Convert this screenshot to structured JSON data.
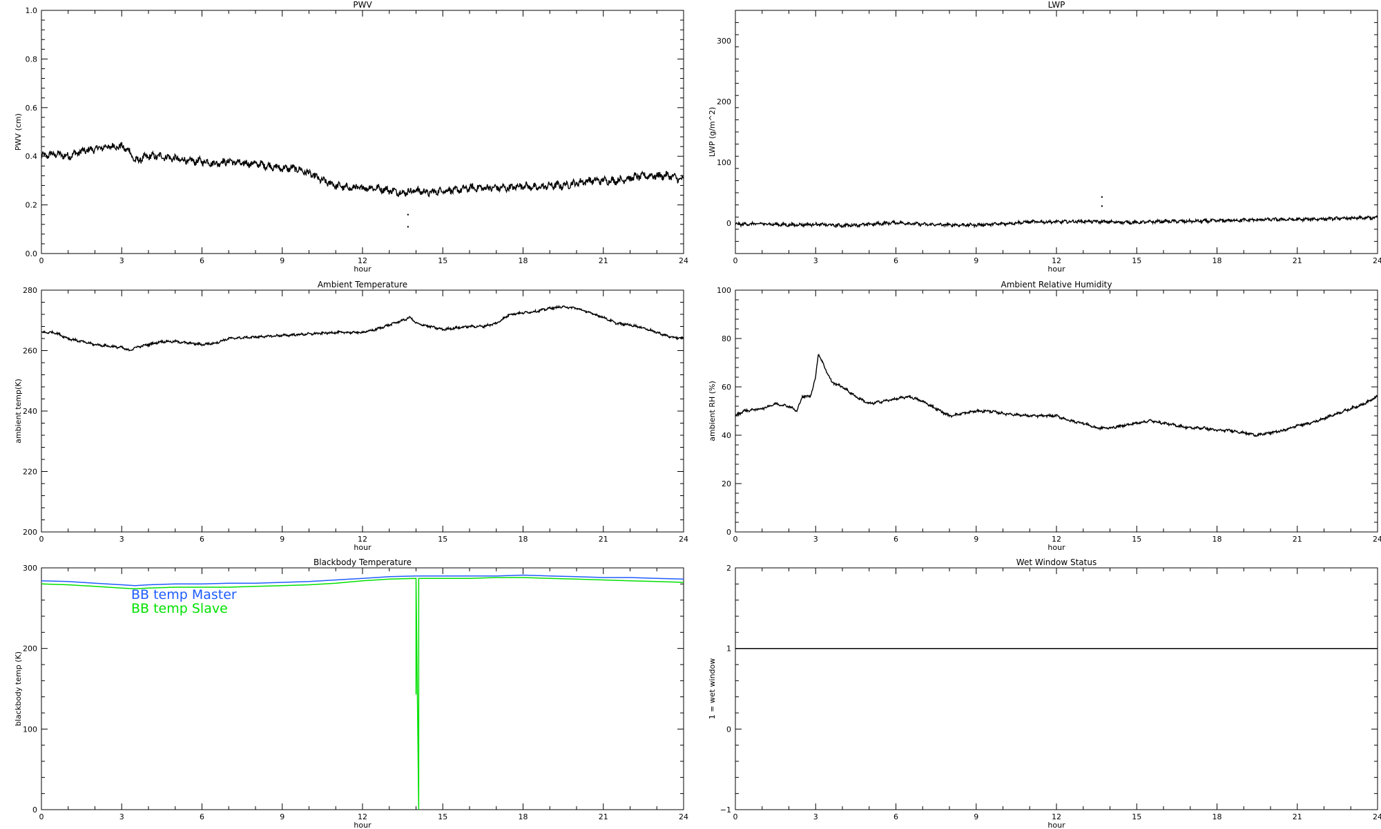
{
  "chart_data": [
    {
      "id": "pwv",
      "type": "scatter",
      "title": "PWV",
      "xlabel": "hour",
      "ylabel": "PWV (cm)",
      "xlim": [
        0,
        24
      ],
      "ylim": [
        0.0,
        1.0
      ],
      "xticks": [
        0,
        3,
        6,
        9,
        12,
        15,
        18,
        21,
        24
      ],
      "yticks": [
        0.0,
        0.2,
        0.4,
        0.6,
        0.8,
        1.0
      ],
      "ytick_labels": [
        "0.0",
        "0.2",
        "0.4",
        "0.6",
        "0.8",
        "1.0"
      ],
      "grid": false,
      "series": [
        {
          "color": "#000000",
          "noise": 0.012,
          "x": [
            0,
            0.5,
            1,
            1.5,
            2,
            2.5,
            3,
            3.3,
            3.5,
            4,
            4.5,
            5,
            5.5,
            6,
            6.5,
            7,
            7.5,
            8,
            8.5,
            9,
            9.5,
            10,
            10.5,
            11,
            11.5,
            12,
            12.5,
            13,
            13.5,
            14,
            14.5,
            15,
            15.5,
            16,
            16.5,
            17,
            17.5,
            18,
            18.5,
            19,
            19.5,
            20,
            20.5,
            21,
            21.5,
            22,
            22.5,
            23,
            23.5,
            24
          ],
          "y": [
            0.4,
            0.41,
            0.4,
            0.42,
            0.43,
            0.44,
            0.44,
            0.42,
            0.38,
            0.4,
            0.4,
            0.39,
            0.38,
            0.38,
            0.37,
            0.38,
            0.37,
            0.37,
            0.36,
            0.35,
            0.35,
            0.33,
            0.3,
            0.28,
            0.27,
            0.27,
            0.27,
            0.26,
            0.25,
            0.26,
            0.25,
            0.26,
            0.26,
            0.27,
            0.27,
            0.27,
            0.27,
            0.28,
            0.27,
            0.28,
            0.28,
            0.29,
            0.3,
            0.3,
            0.3,
            0.31,
            0.32,
            0.32,
            0.32,
            0.3
          ]
        },
        {
          "color": "#000000",
          "markers_only": true,
          "x": [
            13.7,
            13.7
          ],
          "y": [
            0.16,
            0.11
          ]
        }
      ]
    },
    {
      "id": "lwp",
      "type": "scatter",
      "title": "LWP",
      "xlabel": "hour",
      "ylabel": "LWP (g/m^2)",
      "xlim": [
        0,
        24
      ],
      "ylim": [
        -50,
        350
      ],
      "xticks": [
        0,
        3,
        6,
        9,
        12,
        15,
        18,
        21,
        24
      ],
      "yticks": [
        0,
        100,
        200,
        300
      ],
      "ytick_labels": [
        "0",
        "100",
        "200",
        "300"
      ],
      "grid": false,
      "series": [
        {
          "color": "#000000",
          "noise": 2,
          "x": [
            0,
            1,
            2,
            3,
            4,
            5,
            6,
            7,
            8,
            9,
            10,
            11,
            12,
            13,
            14,
            15,
            16,
            17,
            18,
            19,
            20,
            21,
            22,
            23,
            24
          ],
          "y": [
            -2,
            -1,
            -3,
            -2,
            -4,
            -2,
            1,
            -2,
            -3,
            -3,
            -1,
            2,
            2,
            3,
            2,
            1,
            3,
            3,
            4,
            5,
            6,
            6,
            7,
            8,
            9
          ]
        },
        {
          "color": "#000000",
          "markers_only": true,
          "x": [
            13.7,
            13.7
          ],
          "y": [
            43,
            28
          ]
        }
      ]
    },
    {
      "id": "ambient-temperature",
      "type": "line",
      "title": "Ambient Temperature",
      "xlabel": "hour",
      "ylabel": "ambient temp(K)",
      "xlim": [
        0,
        24
      ],
      "ylim": [
        200,
        280
      ],
      "xticks": [
        0,
        3,
        6,
        9,
        12,
        15,
        18,
        21,
        24
      ],
      "yticks": [
        200,
        220,
        240,
        260,
        280
      ],
      "ytick_labels": [
        "200",
        "220",
        "240",
        "260",
        "280"
      ],
      "grid": false,
      "series": [
        {
          "color": "#000000",
          "noise": 0.3,
          "x": [
            0,
            0.5,
            1,
            1.5,
            2,
            2.5,
            3,
            3.3,
            3.5,
            4,
            4.5,
            5,
            5.5,
            6,
            6.5,
            7,
            8,
            9,
            10,
            11,
            12,
            12.5,
            13,
            13.5,
            13.8,
            14,
            14.5,
            15,
            15.5,
            16,
            16.5,
            17,
            17.5,
            18,
            18.5,
            19,
            19.5,
            20,
            20.5,
            21,
            21.5,
            22,
            22.5,
            23,
            23.5,
            24
          ],
          "y": [
            266,
            266,
            264,
            263,
            262,
            261.5,
            261,
            260,
            261,
            262,
            263,
            263,
            262.5,
            262,
            262.5,
            264,
            264.5,
            265,
            265.5,
            266,
            266,
            267,
            268.5,
            270,
            271,
            269,
            268,
            267,
            267.5,
            268,
            268,
            269,
            272,
            272.5,
            273,
            274,
            274.5,
            274,
            272.5,
            271,
            269,
            268.5,
            267.5,
            266,
            264.5,
            264
          ]
        }
      ]
    },
    {
      "id": "ambient-relative-humidity",
      "type": "line",
      "title": "Ambient Relative Humidity",
      "xlabel": "hour",
      "ylabel": "ambient RH (%)",
      "xlim": [
        0,
        24
      ],
      "ylim": [
        0,
        100
      ],
      "xticks": [
        0,
        3,
        6,
        9,
        12,
        15,
        18,
        21,
        24
      ],
      "yticks": [
        0,
        20,
        40,
        60,
        80,
        100
      ],
      "ytick_labels": [
        "0",
        "20",
        "40",
        "60",
        "80",
        "100"
      ],
      "grid": false,
      "series": [
        {
          "color": "#000000",
          "noise": 0.4,
          "x": [
            0,
            0.3,
            1,
            1.5,
            2,
            2.3,
            2.5,
            2.8,
            3,
            3.1,
            3.3,
            3.6,
            4,
            4.5,
            5,
            5.5,
            6,
            6.5,
            7,
            7.5,
            8,
            8.5,
            9,
            9.5,
            10,
            11,
            12,
            12.5,
            13,
            13.5,
            14,
            14.5,
            15,
            15.5,
            16,
            16.5,
            17,
            17.5,
            18,
            18.5,
            19,
            19.5,
            20,
            20.5,
            21,
            21.5,
            22,
            22.5,
            23,
            23.5,
            24
          ],
          "y": [
            48,
            50,
            51,
            53,
            52,
            50,
            56,
            56,
            64,
            74,
            69,
            62,
            60,
            56,
            53,
            54,
            55,
            56,
            54,
            51,
            48,
            49,
            50,
            50,
            49,
            48,
            48,
            46,
            45,
            43,
            43,
            44,
            45,
            46,
            45,
            44,
            43,
            43,
            42,
            42,
            41,
            40,
            41,
            42,
            44,
            45,
            47,
            49,
            51,
            53,
            56
          ]
        }
      ]
    },
    {
      "id": "blackbody-temperature",
      "type": "line",
      "title": "Blackbody Temperature",
      "xlabel": "hour",
      "ylabel": "blackbody temp (K)",
      "xlim": [
        0,
        24
      ],
      "ylim": [
        0,
        300
      ],
      "xticks": [
        0,
        3,
        6,
        9,
        12,
        15,
        18,
        21,
        24
      ],
      "yticks": [
        0,
        100,
        200,
        300
      ],
      "ytick_labels": [
        "0",
        "100",
        "200",
        "300"
      ],
      "grid": false,
      "legend": {
        "placement": "top-left",
        "entries": [
          {
            "label": "BB temp Master",
            "color": "#1e5cff"
          },
          {
            "label": "BB temp Slave",
            "color": "#00e000"
          }
        ]
      },
      "series": [
        {
          "name": "BB temp Master",
          "color": "#1e5cff",
          "x": [
            0,
            1,
            2,
            3,
            3.5,
            4,
            5,
            6,
            7,
            8,
            9,
            10,
            11,
            12,
            13,
            14,
            15,
            16,
            17,
            18,
            19,
            20,
            21,
            22,
            23,
            24
          ],
          "y": [
            284,
            283,
            281,
            279,
            278,
            279,
            280,
            280,
            281,
            281,
            282,
            283,
            285,
            287,
            289,
            290,
            290,
            290,
            290,
            291,
            290,
            289,
            288,
            288,
            287,
            286
          ]
        },
        {
          "name": "BB temp Slave",
          "color": "#00e000",
          "x": [
            0,
            1,
            2,
            3,
            3.5,
            4,
            5,
            6,
            7,
            8,
            9,
            10,
            11,
            12,
            13,
            14,
            14,
            14,
            14.1,
            14.1,
            15,
            16,
            17,
            18,
            19,
            20,
            21,
            22,
            23,
            24
          ],
          "y": [
            280,
            279,
            277,
            275,
            274,
            275,
            276,
            276,
            276,
            277,
            278,
            279,
            281,
            284,
            286,
            287,
            143,
            287,
            0,
            287,
            287,
            287,
            288,
            288,
            287,
            286,
            285,
            284,
            283,
            282
          ]
        }
      ]
    },
    {
      "id": "wet-window-status",
      "type": "line",
      "title": "Wet Window Status",
      "xlabel": "hour",
      "ylabel": "1 = wet window",
      "xlim": [
        0,
        24
      ],
      "ylim": [
        -1,
        2
      ],
      "xticks": [
        0,
        3,
        6,
        9,
        12,
        15,
        18,
        21,
        24
      ],
      "yticks": [
        -1,
        0,
        1,
        2
      ],
      "ytick_labels": [
        "−1",
        "0",
        "1",
        "2"
      ],
      "grid": false,
      "series": [
        {
          "color": "#000000",
          "x": [
            0,
            24
          ],
          "y": [
            1,
            1
          ]
        }
      ]
    }
  ]
}
